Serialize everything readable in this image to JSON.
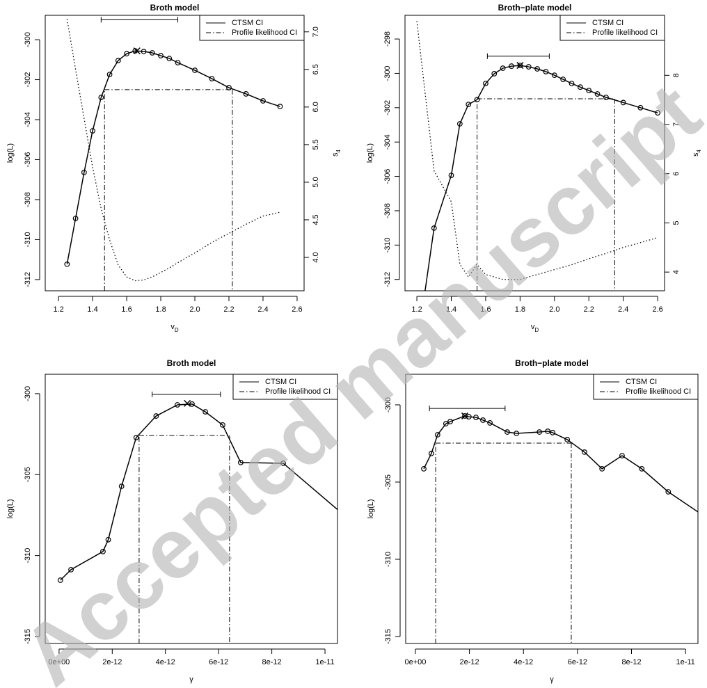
{
  "chart_data": [
    {
      "type": "line",
      "title": "Broth model",
      "xlabel": "v",
      "xlabel_sub": "D",
      "ylabel": "log(L)",
      "y2label": "s",
      "y2label_sub": "4",
      "xlim": [
        1.122,
        2.641
      ],
      "ylim": [
        -312.56,
        -298.78
      ],
      "y2lim": [
        3.556,
        7.22
      ],
      "xticks": [
        1.2,
        1.4,
        1.6,
        1.8,
        {
          "value": 2,
          "label": "2.0"
        },
        2.2,
        2.4,
        2.6
      ],
      "yticks": [
        -312,
        -310,
        -308,
        -306,
        -304,
        -302,
        -300
      ],
      "y2ticks": [
        {
          "value": 4,
          "label": "4.0"
        },
        4.5,
        {
          "value": 5,
          "label": "5.0"
        },
        5.5,
        {
          "value": 6,
          "label": "6.0"
        },
        6.5,
        {
          "value": 7,
          "label": "7.0"
        }
      ],
      "x": [
        1.25,
        1.3,
        1.35,
        1.4,
        1.45,
        1.5,
        1.55,
        1.6,
        1.65,
        1.7,
        1.75,
        1.8,
        1.85,
        1.9,
        2.0,
        2.1,
        2.2,
        2.3,
        2.4,
        2.5
      ],
      "values": [
        -311.23,
        -308.94,
        -306.64,
        -304.56,
        -302.89,
        -301.74,
        -301.04,
        -300.7,
        -300.56,
        -300.59,
        -300.66,
        -300.8,
        -300.94,
        -301.15,
        -301.53,
        -301.95,
        -302.4,
        -302.71,
        -303.06,
        -303.34
      ],
      "color": "#000000",
      "max_point": {
        "x": 1.66,
        "y": -300.56
      },
      "intervals": [
        {
          "name": "CTSM CI",
          "lower": 1.45,
          "upper": 1.9,
          "level": -299.0
        },
        {
          "name": "Profile likelihood CI",
          "lower": 1.47,
          "upper": 2.22,
          "level": -302.5
        }
      ],
      "y2_series": {
        "axis": "y2",
        "x": [
          1.25,
          1.3,
          1.35,
          1.4,
          1.45,
          1.5,
          1.55,
          1.6,
          1.65,
          1.7,
          1.75,
          1.8,
          1.85,
          1.9,
          2.0,
          2.1,
          2.2,
          2.3,
          2.4,
          2.5
        ],
        "values": [
          7.17,
          6.5,
          5.85,
          5.2,
          4.65,
          4.23,
          3.9,
          3.74,
          3.69,
          3.7,
          3.74,
          3.8,
          3.86,
          3.93,
          4.06,
          4.2,
          4.32,
          4.44,
          4.55,
          4.6
        ]
      },
      "legend_position": "topright"
    },
    {
      "type": "line",
      "title": "Broth−plate model",
      "xlabel": "v",
      "xlabel_sub": "D",
      "ylabel": "log(L)",
      "y2label": "s",
      "y2label_sub": "4",
      "xlim": [
        1.131,
        2.64
      ],
      "ylim": [
        -312.66,
        -296.62
      ],
      "y2lim": [
        3.62,
        9.22
      ],
      "xticks": [
        1.2,
        1.4,
        1.6,
        1.8,
        {
          "value": 2,
          "label": "2.0"
        },
        2.2,
        2.4,
        2.6
      ],
      "yticks": [
        -312,
        -310,
        -308,
        -306,
        -304,
        -302,
        -300,
        -298
      ],
      "y2ticks": [
        4,
        5,
        6,
        7,
        8
      ],
      "x": [
        1.2,
        1.3,
        1.4,
        1.45,
        1.5,
        1.55,
        1.6,
        1.65,
        1.7,
        1.75,
        1.8,
        1.85,
        1.9,
        1.95,
        2.0,
        2.05,
        2.1,
        2.15,
        2.2,
        2.25,
        2.3,
        2.4,
        2.5,
        2.6
      ],
      "values": [
        -316,
        -309.01,
        -305.94,
        -302.94,
        -301.81,
        -301.53,
        -300.59,
        -300.02,
        -299.7,
        -299.58,
        -299.54,
        -299.62,
        -299.74,
        -299.9,
        -300.11,
        -300.35,
        -300.59,
        -300.8,
        -301.0,
        -301.2,
        -301.4,
        -301.7,
        -302.0,
        -302.3
      ],
      "color": "#000000",
      "max_point": {
        "x": 1.8,
        "y": -299.54
      },
      "intervals": [
        {
          "name": "CTSM CI",
          "lower": 1.61,
          "upper": 1.97,
          "level": -299.0
        },
        {
          "name": "Profile likelihood CI",
          "lower": 1.55,
          "upper": 2.35,
          "level": -301.48
        }
      ],
      "y2_series": {
        "axis": "y2",
        "x": [
          1.2,
          1.3,
          1.4,
          1.45,
          1.5,
          1.55,
          1.6,
          1.7,
          1.8,
          1.9,
          2.0,
          2.1,
          2.2,
          2.3,
          2.4,
          2.5,
          2.6
        ],
        "values": [
          9.1,
          6.06,
          5.43,
          4.16,
          3.9,
          4.16,
          3.95,
          3.85,
          3.85,
          3.95,
          4.05,
          4.15,
          4.27,
          4.38,
          4.5,
          4.6,
          4.7
        ]
      },
      "legend_position": "topright"
    },
    {
      "type": "line",
      "title": "Broth model",
      "xlabel": "γ",
      "ylabel": "log(L)",
      "xlim": [
        -5.2e-13,
        1.047e-11
      ],
      "ylim": [
        -315.43,
        -298.8
      ],
      "xticks": [
        {
          "value": 0,
          "label": "0e+00"
        },
        {
          "value": 2e-12,
          "label": "2e-12"
        },
        {
          "value": 4e-12,
          "label": "4e-12"
        },
        {
          "value": 6e-12,
          "label": "6e-12"
        },
        {
          "value": 8e-12,
          "label": "8e-12"
        },
        {
          "value": 1e-11,
          "label": "1e-11"
        }
      ],
      "yticks": [
        -315,
        -310,
        -305,
        -300
      ],
      "x": [
        5e-14,
        4.5e-13,
        1.65e-12,
        1.85e-12,
        2.35e-12,
        2.9e-12,
        3.65e-12,
        4.45e-12,
        5e-12,
        5.5e-12,
        6.15e-12,
        6.83e-12,
        8.43e-12,
        1.1e-11
      ],
      "values": [
        -311.52,
        -310.87,
        -309.75,
        -309.02,
        -305.72,
        -302.71,
        -301.38,
        -300.69,
        -300.64,
        -301.12,
        -301.93,
        -304.25,
        -304.3,
        -307.9
      ],
      "color": "#000000",
      "max_point": {
        "x": 4.82e-12,
        "y": -300.6
      },
      "intervals": [
        {
          "name": "CTSM CI",
          "lower": 3.5e-12,
          "upper": 6.07e-12,
          "level": -300.04
        },
        {
          "name": "Profile likelihood CI",
          "lower": 3.01e-12,
          "upper": 6.41e-12,
          "level": -302.58
        }
      ],
      "legend_position": "topright"
    },
    {
      "type": "line",
      "title": "Broth−plate model",
      "xlabel": "γ",
      "ylabel": "log(L)",
      "xlim": [
        -3.6e-13,
        1.046e-11
      ],
      "ylim": [
        -315.45,
        -298.02
      ],
      "xticks": [
        {
          "value": 0,
          "label": "0e+00"
        },
        {
          "value": 2e-12,
          "label": "2e-12"
        },
        {
          "value": 4e-12,
          "label": "4e-12"
        },
        {
          "value": 6e-12,
          "label": "6e-12"
        },
        {
          "value": 8e-12,
          "label": "8e-12"
        },
        {
          "value": 1e-11,
          "label": "1e-11"
        }
      ],
      "yticks": [
        -315,
        -310,
        -305,
        -300
      ],
      "x": [
        3.1e-13,
        5.9e-13,
        8.2e-13,
        1.13e-12,
        1.29e-12,
        1.83e-12,
        1.98e-12,
        2.24e-12,
        2.5e-12,
        2.76e-12,
        3.4e-12,
        3.74e-12,
        4.59e-12,
        4.9e-12,
        5.08e-12,
        5.62e-12,
        6.26e-12,
        6.91e-12,
        7.65e-12,
        8.38e-12,
        9.36e-12,
        1.1e-11
      ],
      "values": [
        -304.14,
        -303.15,
        -301.94,
        -301.22,
        -301.08,
        -300.72,
        -300.77,
        -300.81,
        -300.99,
        -301.17,
        -301.76,
        -301.85,
        -301.76,
        -301.71,
        -301.8,
        -302.25,
        -303.06,
        -304.14,
        -303.29,
        -304.14,
        -305.63,
        -307.57
      ],
      "color": "#000000",
      "max_point": {
        "x": 1.83e-12,
        "y": -300.72
      },
      "intervals": [
        {
          "name": "CTSM CI",
          "lower": 5.2e-13,
          "upper": 3.32e-12,
          "level": -300.23
        },
        {
          "name": "Profile likelihood CI",
          "lower": 7.5e-13,
          "upper": 5.77e-12,
          "level": -302.48
        }
      ],
      "legend_position": "topright"
    }
  ],
  "watermark": "Accepted manuscript"
}
